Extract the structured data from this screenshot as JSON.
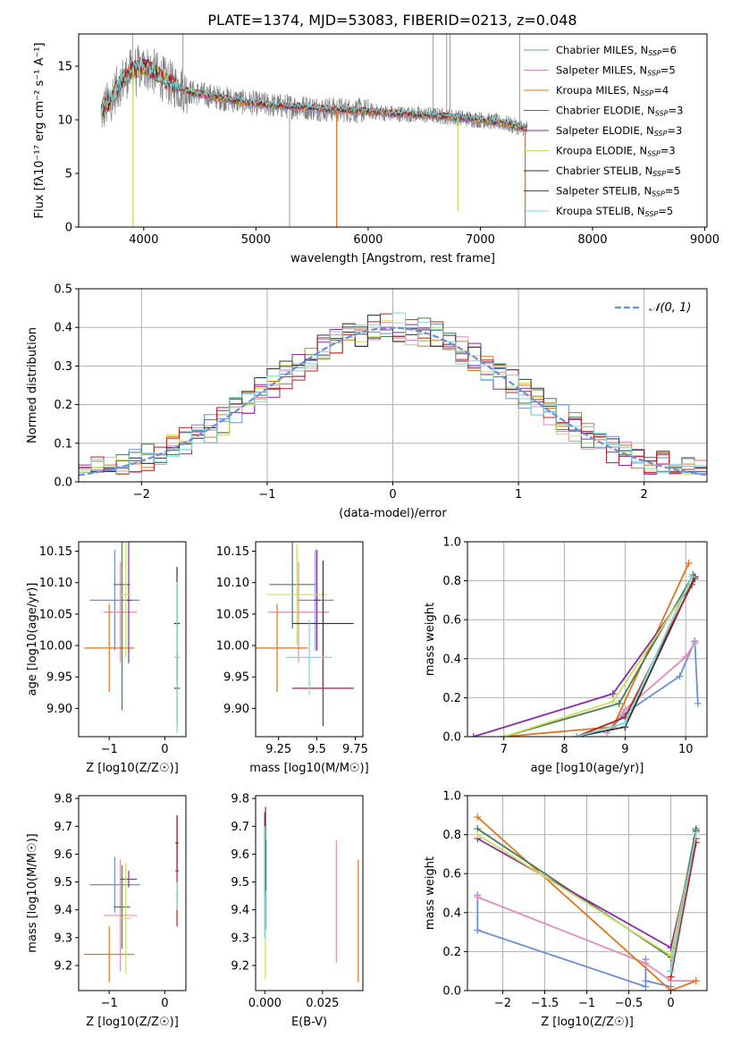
{
  "title": "PLATE=1374, MJD=53083, FIBERID=0213, z=0.048",
  "colors": {
    "Chabrier MILES": "#6a8fd6",
    "Salpeter MILES": "#e48abd",
    "Kroupa MILES": "#e0741f",
    "Chabrier ELODIE": "#4b7a54",
    "Salpeter ELODIE": "#8a2aa6",
    "Kroupa ELODIE": "#c7e05a",
    "Chabrier STELIB": "#333333",
    "Salpeter STELIB": "#b81f1f",
    "Kroupa STELIB": "#7ad7dc",
    "data": "#808080",
    "grid": "#b0b0b0",
    "normal": "#6a8fd6"
  },
  "chart_data": [
    {
      "id": "spectrum",
      "type": "line",
      "title": "PLATE=1374, MJD=53083, FIBERID=0213, z=0.048",
      "xlabel": "wavelength [Angstrom, rest frame]",
      "ylabel": "Flux [fλ10⁻¹⁷ erg cm⁻² s⁻¹ A⁻¹]",
      "xlim": [
        3420,
        9020
      ],
      "ylim": [
        0,
        18
      ],
      "xticks": [
        4000,
        5000,
        6000,
        7000,
        8000,
        9000
      ],
      "yticks": [
        0,
        5,
        10,
        15
      ],
      "grid": false,
      "legend_position": "top-right",
      "legend": [
        "Chabrier MILES, N_SSP=6",
        "Salpeter MILES, N_SSP=5",
        "Kroupa MILES, N_SSP=4",
        "Chabrier ELODIE, N_SSP=3",
        "Salpeter ELODIE, N_SSP=3",
        "Kroupa ELODIE, N_SSP=3",
        "Chabrier STELIB, N_SSP=5",
        "Salpeter STELIB, N_SSP=5",
        "Kroupa STELIB, N_SSP=5"
      ],
      "data_trend": {
        "x": [
          3620,
          3700,
          3800,
          3900,
          4000,
          4100,
          4200,
          4400,
          4600,
          4800,
          5000,
          5200,
          5400,
          5600,
          5800,
          6000,
          6200,
          6400,
          6600,
          6800,
          7000,
          7200,
          7400
        ],
        "y": [
          10.6,
          11.8,
          13.6,
          14.6,
          15.0,
          14.4,
          13.6,
          12.6,
          12.2,
          11.8,
          11.5,
          11.3,
          11.2,
          11.0,
          10.9,
          10.8,
          10.6,
          10.5,
          10.4,
          10.2,
          10.0,
          9.7,
          9.2
        ]
      },
      "model_dips": [
        {
          "model": "Kroupa ELODIE",
          "x": 3905,
          "y": 0
        },
        {
          "model": "Kroupa MILES",
          "x": 5720,
          "y": 0
        },
        {
          "model": "Kroupa MILES",
          "x": 7400,
          "y": 0
        },
        {
          "model": "Kroupa ELODIE",
          "x": 6800,
          "y": 1.5
        }
      ]
    },
    {
      "id": "residual-histogram",
      "type": "line",
      "xlabel": "(data-model)/error",
      "ylabel": "Normed distribution",
      "xlim": [
        -2.5,
        2.5
      ],
      "ylim": [
        0,
        0.5
      ],
      "xticks": [
        -2,
        -1,
        0,
        1,
        2
      ],
      "yticks": [
        0,
        0.1,
        0.2,
        0.3,
        0.4,
        0.5
      ],
      "grid": true,
      "legend_position": "top-right",
      "legend": [
        "N(0,1)"
      ],
      "normal_curve": {
        "mean": 0,
        "sigma": 1
      },
      "bin_width": 0.1
    },
    {
      "id": "age-vs-Z",
      "type": "scatter",
      "xlabel": "Z [log10(Z/Z☉)]",
      "ylabel": "age [log10(age/yr)]",
      "xlim": [
        -1.55,
        0.38
      ],
      "ylim": [
        9.855,
        10.165
      ],
      "xticks": [
        -1,
        0
      ],
      "yticks": [
        9.9,
        9.95,
        10.0,
        10.05,
        10.1,
        10.15
      ],
      "grid": false,
      "points": [
        {
          "model": "Chabrier MILES",
          "x": -0.9,
          "y": 10.072,
          "xerr": 0.45,
          "yerr": 0.08
        },
        {
          "model": "Salpeter MILES",
          "x": -0.8,
          "y": 10.053,
          "xerr": 0.3,
          "yerr": 0.08
        },
        {
          "model": "Kroupa MILES",
          "x": -1.0,
          "y": 9.996,
          "xerr": 0.45,
          "yerr": 0.07
        },
        {
          "model": "Chabrier ELODIE",
          "x": -0.77,
          "y": 10.097,
          "xerr": 0.15,
          "yerr": 0.2
        },
        {
          "model": "Salpeter ELODIE",
          "x": -0.65,
          "y": 10.072,
          "xerr": 0.05,
          "yerr": 0.1
        },
        {
          "model": "Kroupa ELODIE",
          "x": -0.7,
          "y": 10.081,
          "xerr": 0.1,
          "yerr": 0.1
        },
        {
          "model": "Chabrier STELIB",
          "x": 0.22,
          "y": 10.035,
          "xerr": 0.05,
          "yerr": 0.09
        },
        {
          "model": "Salpeter STELIB",
          "x": 0.22,
          "y": 9.932,
          "xerr": 0.05,
          "yerr": 0.06
        },
        {
          "model": "Kroupa STELIB",
          "x": 0.22,
          "y": 9.981,
          "xerr": 0.05,
          "yerr": 0.12
        }
      ]
    },
    {
      "id": "age-vs-mass",
      "type": "scatter",
      "xlabel": "mass [log10(M/M☉)]",
      "ylabel": "",
      "xlim": [
        9.1,
        9.8
      ],
      "ylim": [
        9.855,
        10.165
      ],
      "xticks": [
        9.25,
        9.5,
        9.75
      ],
      "yticks": [
        9.9,
        9.95,
        10.0,
        10.05,
        10.1,
        10.15
      ],
      "grid": false,
      "points": [
        {
          "model": "Chabrier MILES",
          "x": 9.49,
          "y": 10.072,
          "xerr": 0.12,
          "yerr": 0.08
        },
        {
          "model": "Salpeter MILES",
          "x": 9.38,
          "y": 10.053,
          "xerr": 0.2,
          "yerr": 0.08
        },
        {
          "model": "Kroupa MILES",
          "x": 9.24,
          "y": 9.996,
          "xerr": 0.2,
          "yerr": 0.07
        },
        {
          "model": "Chabrier ELODIE",
          "x": 9.34,
          "y": 10.097,
          "xerr": 0.15,
          "yerr": 0.07
        },
        {
          "model": "Salpeter ELODIE",
          "x": 9.5,
          "y": 10.072,
          "xerr": 0.02,
          "yerr": 0.08
        },
        {
          "model": "Kroupa ELODIE",
          "x": 9.37,
          "y": 10.081,
          "xerr": 0.2,
          "yerr": 0.08
        },
        {
          "model": "Chabrier STELIB",
          "x": 9.54,
          "y": 10.035,
          "xerr": 0.2,
          "yerr": 0.1
        },
        {
          "model": "Salpeter STELIB",
          "x": 9.54,
          "y": 9.932,
          "xerr": 0.2,
          "yerr": 0.06
        },
        {
          "model": "Kroupa STELIB",
          "x": 9.45,
          "y": 9.981,
          "xerr": 0.15,
          "yerr": 0.06
        }
      ]
    },
    {
      "id": "weight-vs-age",
      "type": "line",
      "xlabel": "age [log10(age/yr)]",
      "ylabel": "mass weight",
      "xlim": [
        6.4,
        10.35
      ],
      "ylim": [
        0,
        1
      ],
      "xticks": [
        7,
        8,
        9,
        10
      ],
      "yticks": [
        0,
        0.2,
        0.4,
        0.6,
        0.8,
        1.0
      ],
      "grid": true,
      "series": [
        {
          "model": "Chabrier MILES",
          "x": [
            8.7,
            9.0,
            9.9,
            10.15,
            10.2,
            10.15
          ],
          "y": [
            0.02,
            0.12,
            0.31,
            0.49,
            0.17,
            0.49
          ]
        },
        {
          "model": "Salpeter MILES",
          "x": [
            8.7,
            9.0,
            10.0,
            10.15
          ],
          "y": [
            0.02,
            0.14,
            0.41,
            0.48
          ]
        },
        {
          "model": "Kroupa MILES",
          "x": [
            7.0,
            8.8,
            10.05
          ],
          "y": [
            0.0,
            0.05,
            0.89
          ]
        },
        {
          "model": "Chabrier ELODIE",
          "x": [
            7.0,
            8.9,
            10.12
          ],
          "y": [
            0.0,
            0.17,
            0.83
          ]
        },
        {
          "model": "Salpeter ELODIE",
          "x": [
            6.5,
            8.8,
            10.1
          ],
          "y": [
            0.0,
            0.22,
            0.78
          ]
        },
        {
          "model": "Kroupa ELODIE",
          "x": [
            7.0,
            8.8,
            10.12
          ],
          "y": [
            0.0,
            0.18,
            0.8
          ]
        },
        {
          "model": "Chabrier STELIB",
          "x": [
            8.2,
            9.0,
            10.15
          ],
          "y": [
            0.0,
            0.05,
            0.82
          ]
        },
        {
          "model": "Salpeter STELIB",
          "x": [
            8.2,
            9.0,
            10.15
          ],
          "y": [
            0.0,
            0.1,
            0.81
          ]
        },
        {
          "model": "Kroupa STELIB",
          "x": [
            8.2,
            9.0,
            10.1
          ],
          "y": [
            0.0,
            0.07,
            0.82
          ]
        }
      ]
    },
    {
      "id": "mass-vs-Z",
      "type": "scatter",
      "xlabel": "Z [log10(Z/Z☉)]",
      "ylabel": "mass [log10(M/M☉)]",
      "xlim": [
        -1.55,
        0.38
      ],
      "ylim": [
        9.11,
        9.81
      ],
      "xticks": [
        -1,
        0
      ],
      "yticks": [
        9.2,
        9.3,
        9.4,
        9.5,
        9.6,
        9.7,
        9.8
      ],
      "grid": false,
      "points": [
        {
          "model": "Chabrier MILES",
          "x": -0.9,
          "y": 9.49,
          "xerr": 0.45,
          "yerr": 0.1
        },
        {
          "model": "Salpeter MILES",
          "x": -0.8,
          "y": 9.38,
          "xerr": 0.3,
          "yerr": 0.2
        },
        {
          "model": "Kroupa MILES",
          "x": -1.0,
          "y": 9.24,
          "xerr": 0.45,
          "yerr": 0.1
        },
        {
          "model": "Chabrier ELODIE",
          "x": -0.77,
          "y": 9.41,
          "xerr": 0.15,
          "yerr": 0.15
        },
        {
          "model": "Salpeter ELODIE",
          "x": -0.65,
          "y": 9.51,
          "xerr": 0.15,
          "yerr": 0.03
        },
        {
          "model": "Kroupa ELODIE",
          "x": -0.7,
          "y": 9.37,
          "xerr": 0.1,
          "yerr": 0.2
        },
        {
          "model": "Chabrier STELIB",
          "x": 0.22,
          "y": 9.64,
          "xerr": 0.03,
          "yerr": 0.1
        },
        {
          "model": "Salpeter STELIB",
          "x": 0.22,
          "y": 9.54,
          "xerr": 0.03,
          "yerr": 0.2
        },
        {
          "model": "Kroupa STELIB",
          "x": 0.22,
          "y": 9.45,
          "xerr": 0.03,
          "yerr": 0.05
        }
      ]
    },
    {
      "id": "mass-vs-EBV",
      "type": "scatter",
      "xlabel": "E(B-V)",
      "ylabel": "",
      "xlim": [
        -0.004,
        0.0425
      ],
      "ylim": [
        9.11,
        9.81
      ],
      "xticks": [
        0.0,
        0.025
      ],
      "xticklabels": [
        "0.000",
        "0.025"
      ],
      "yticks": [
        9.2,
        9.3,
        9.4,
        9.5,
        9.6,
        9.7,
        9.8
      ],
      "grid": false,
      "points": [
        {
          "model": "Chabrier MILES",
          "x": 0.0005,
          "y": 9.49,
          "yerr": 0.16
        },
        {
          "model": "Salpeter MILES",
          "x": 0.031,
          "y": 9.43,
          "yerr": 0.22
        },
        {
          "model": "Kroupa MILES",
          "x": 0.0405,
          "y": 9.36,
          "yerr": 0.22
        },
        {
          "model": "Chabrier ELODIE",
          "x": 0.0,
          "y": 9.5,
          "yerr": 0.2
        },
        {
          "model": "Salpeter ELODIE",
          "x": 0.0,
          "y": 9.55,
          "yerr": 0.2
        },
        {
          "model": "Kroupa ELODIE",
          "x": 0.0002,
          "y": 9.45,
          "yerr": 0.3
        },
        {
          "model": "Chabrier STELIB",
          "x": 0.0,
          "y": 9.6,
          "yerr": 0.15
        },
        {
          "model": "Salpeter STELIB",
          "x": 0.0003,
          "y": 9.62,
          "yerr": 0.15
        },
        {
          "model": "Kroupa STELIB",
          "x": 0.0,
          "y": 9.5,
          "yerr": 0.2
        }
      ]
    },
    {
      "id": "weight-vs-Z",
      "type": "line",
      "xlabel": "Z [log10(Z/Z☉)]",
      "ylabel": "mass weight",
      "xlim": [
        -2.42,
        0.43
      ],
      "ylim": [
        0,
        1
      ],
      "xticks": [
        -2.0,
        -1.5,
        -1.0,
        -0.5,
        0.0
      ],
      "yticks": [
        0,
        0.2,
        0.4,
        0.6,
        0.8,
        1.0
      ],
      "grid": true,
      "series": [
        {
          "model": "Chabrier MILES",
          "x": [
            -2.3,
            -2.3,
            -2.3,
            -0.3,
            -0.3,
            -0.3,
            0.0
          ],
          "y": [
            0.49,
            0.31,
            0.31,
            0.02,
            0.16,
            0.05,
            0.02
          ]
        },
        {
          "model": "Salpeter MILES",
          "x": [
            -2.3,
            -0.3,
            0.0,
            0.3
          ],
          "y": [
            0.48,
            0.14,
            0.05,
            0.05
          ]
        },
        {
          "model": "Kroupa MILES",
          "x": [
            -2.3,
            0.0,
            0.3
          ],
          "y": [
            0.89,
            0.0,
            0.05
          ]
        },
        {
          "model": "Chabrier ELODIE",
          "x": [
            -2.3,
            0.0,
            0.3
          ],
          "y": [
            0.83,
            0.17,
            0.83
          ]
        },
        {
          "model": "Salpeter ELODIE",
          "x": [
            -2.3,
            0.0,
            0.3
          ],
          "y": [
            0.78,
            0.22,
            0.78
          ]
        },
        {
          "model": "Kroupa ELODIE",
          "x": [
            -2.3,
            0.0,
            0.3
          ],
          "y": [
            0.8,
            0.18,
            0.8
          ]
        },
        {
          "model": "Chabrier STELIB",
          "x": [
            0.0,
            0.3
          ],
          "y": [
            0.1,
            0.82
          ]
        },
        {
          "model": "Salpeter STELIB",
          "x": [
            0.0,
            0.3
          ],
          "y": [
            0.07,
            0.76
          ]
        },
        {
          "model": "Kroupa STELIB",
          "x": [
            0.0,
            0.3
          ],
          "y": [
            0.1,
            0.81
          ]
        }
      ]
    }
  ]
}
